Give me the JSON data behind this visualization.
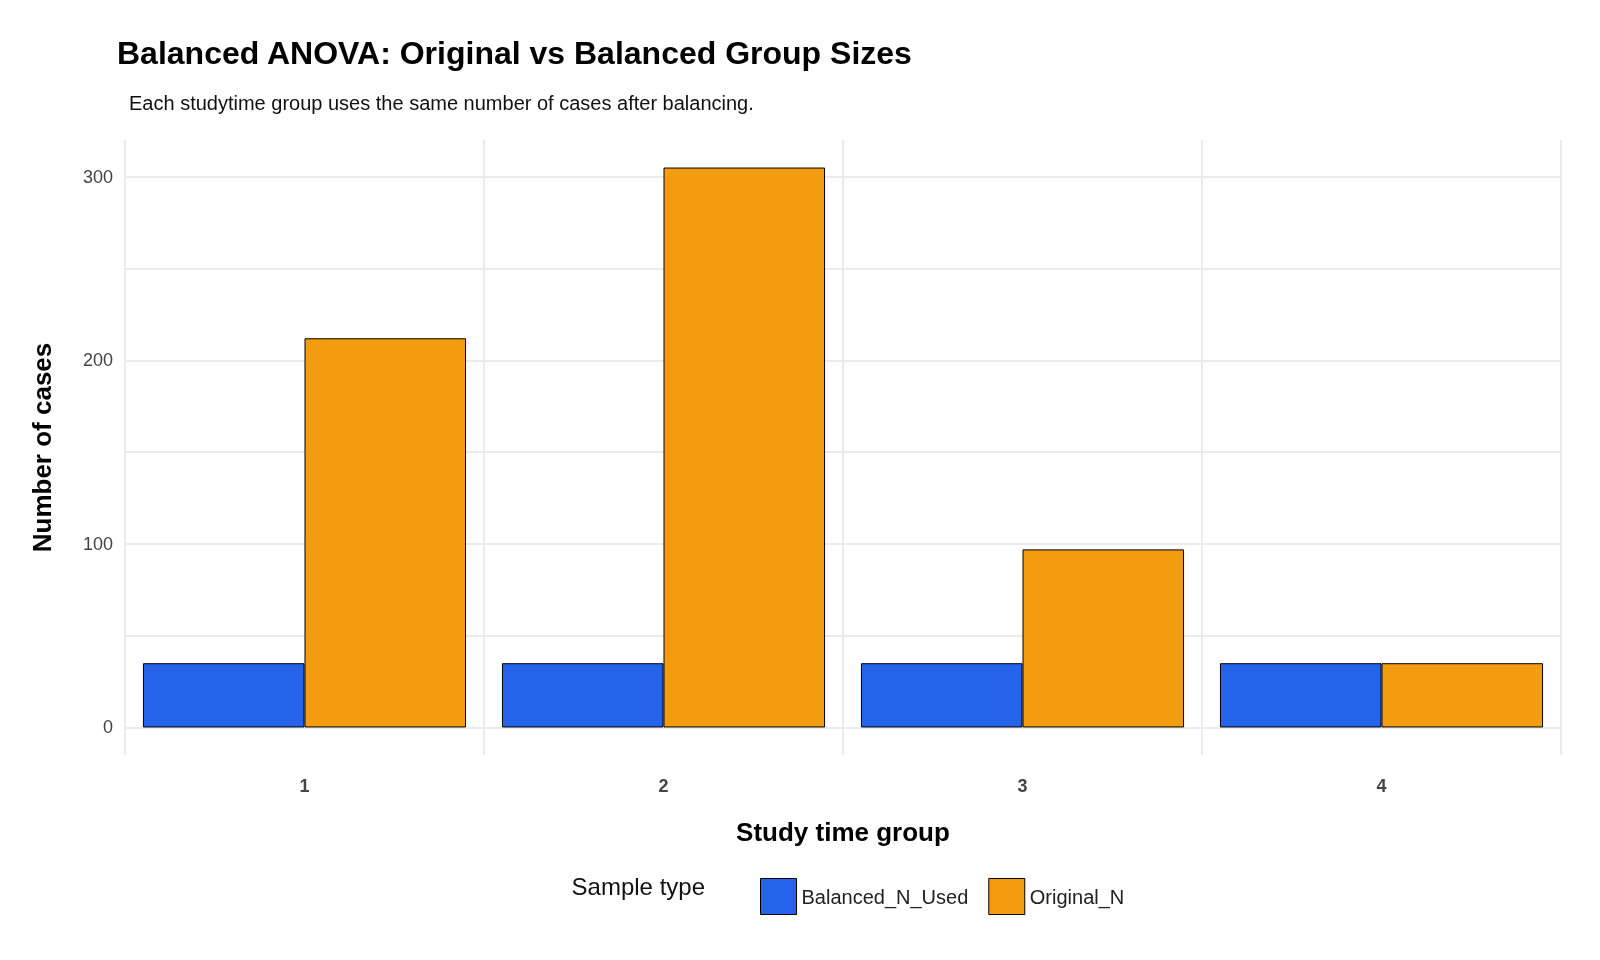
{
  "chart_data": {
    "type": "bar",
    "title": "Balanced ANOVA: Original vs Balanced Group Sizes",
    "subtitle": "Each studytime group uses the same number of cases after balancing.",
    "xlabel": "Study time group",
    "ylabel": "Number of cases",
    "legend_title": "Sample type",
    "categories": [
      "1",
      "2",
      "3",
      "4"
    ],
    "series": [
      {
        "name": "Balanced_N_Used",
        "color": "#2563eb",
        "values": [
          35,
          35,
          35,
          35
        ]
      },
      {
        "name": "Original_N",
        "color": "#f39c0f",
        "values": [
          212,
          305,
          97,
          35
        ]
      }
    ],
    "ylim": [
      -15,
      320
    ],
    "yticks": [
      0,
      {
        "value": 50,
        "label": null
      },
      100,
      {
        "value": 150,
        "label": null
      },
      200,
      {
        "value": 250,
        "label": null
      },
      300
    ],
    "grid": true,
    "legend": "bottom"
  }
}
